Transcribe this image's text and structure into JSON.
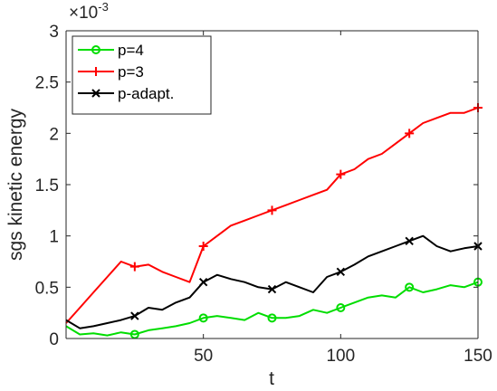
{
  "chart_data": {
    "type": "line",
    "title": "",
    "xlabel": "t",
    "ylabel": "sgs kinetic energy",
    "xlim": [
      0,
      150
    ],
    "ylim": [
      0,
      0.003
    ],
    "xticks": [
      50,
      100,
      150
    ],
    "xtick_labels": [
      "50",
      "100",
      "150"
    ],
    "yticks": [
      0,
      0.0005,
      0.001,
      0.0015,
      0.002,
      0.0025,
      0.003
    ],
    "ytick_labels": [
      "0",
      "0.5",
      "1",
      "1.5",
      "2",
      "2.5",
      "3"
    ],
    "y_exponent_label": "×10",
    "y_exponent_power": "-3",
    "grid": false,
    "legend_position": "top-left",
    "series": [
      {
        "name": "p=4",
        "color": "#00dd00",
        "marker": "circle",
        "x": [
          0,
          5,
          10,
          15,
          20,
          25,
          30,
          35,
          40,
          45,
          50,
          55,
          60,
          65,
          70,
          75,
          80,
          85,
          90,
          95,
          100,
          105,
          110,
          115,
          120,
          125,
          130,
          135,
          140,
          145,
          150
        ],
        "y": [
          0.00012,
          4e-05,
          5e-05,
          3e-05,
          6e-05,
          4e-05,
          8e-05,
          0.0001,
          0.00012,
          0.00015,
          0.0002,
          0.00022,
          0.0002,
          0.00018,
          0.00025,
          0.0002,
          0.0002,
          0.00022,
          0.00028,
          0.00025,
          0.0003,
          0.00035,
          0.0004,
          0.00042,
          0.0004,
          0.0005,
          0.00045,
          0.00048,
          0.00052,
          0.0005,
          0.00055
        ]
      },
      {
        "name": "p=3",
        "color": "#ff0000",
        "marker": "plus",
        "x": [
          0,
          5,
          10,
          15,
          20,
          25,
          30,
          35,
          40,
          45,
          50,
          55,
          60,
          65,
          70,
          75,
          80,
          85,
          90,
          95,
          100,
          105,
          110,
          115,
          120,
          125,
          130,
          135,
          140,
          145,
          150
        ],
        "y": [
          0.00015,
          0.0003,
          0.00045,
          0.0006,
          0.00075,
          0.0007,
          0.00072,
          0.00065,
          0.0006,
          0.00055,
          0.0009,
          0.001,
          0.0011,
          0.00115,
          0.0012,
          0.00125,
          0.0013,
          0.00135,
          0.0014,
          0.00145,
          0.0016,
          0.00165,
          0.00175,
          0.0018,
          0.0019,
          0.002,
          0.0021,
          0.00215,
          0.0022,
          0.0022,
          0.00225
        ]
      },
      {
        "name": "p-adapt.",
        "color": "#000000",
        "marker": "cross",
        "x": [
          0,
          5,
          10,
          15,
          20,
          25,
          30,
          35,
          40,
          45,
          50,
          55,
          60,
          65,
          70,
          75,
          80,
          85,
          90,
          95,
          100,
          105,
          110,
          115,
          120,
          125,
          130,
          135,
          140,
          145,
          150
        ],
        "y": [
          0.00018,
          0.0001,
          0.00012,
          0.00015,
          0.00018,
          0.00022,
          0.0003,
          0.00028,
          0.00035,
          0.0004,
          0.00055,
          0.00062,
          0.00058,
          0.00055,
          0.0005,
          0.00048,
          0.00055,
          0.0005,
          0.00045,
          0.0006,
          0.00065,
          0.00072,
          0.0008,
          0.00085,
          0.0009,
          0.00095,
          0.001,
          0.0009,
          0.00085,
          0.00088,
          0.0009
        ]
      }
    ]
  }
}
